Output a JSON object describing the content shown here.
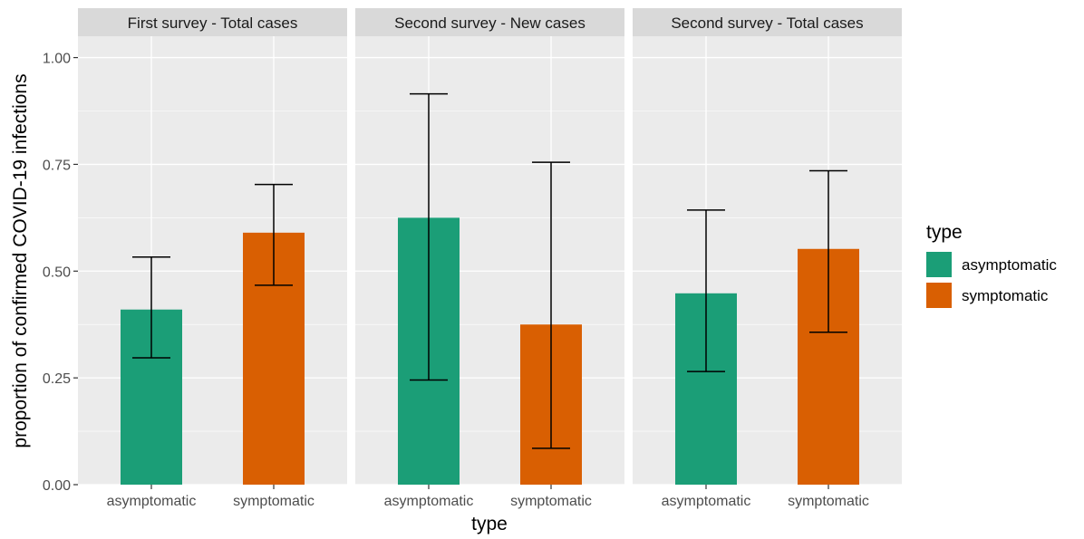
{
  "chart_data": {
    "type": "bar",
    "xlabel": "type",
    "ylabel": "proportion of confirmed COVID-19 infections",
    "ylim": [
      0,
      1.05
    ],
    "y_ticks": [
      "0.00",
      "0.25",
      "0.50",
      "0.75",
      "1.00"
    ],
    "y_tick_values": [
      0,
      0.25,
      0.5,
      0.75,
      1.0
    ],
    "grid": true,
    "legend": {
      "title": "type",
      "position": "right",
      "entries": [
        "asymptomatic",
        "symptomatic"
      ]
    },
    "colors": {
      "asymptomatic": "#1b9e77",
      "symptomatic": "#d95f02",
      "panel_background": "#ebebeb",
      "strip_background": "#d9d9d9",
      "gridline": "#ffffff"
    },
    "categories": [
      "asymptomatic",
      "symptomatic"
    ],
    "facets": [
      {
        "title": "First survey - Total cases",
        "bars": [
          {
            "category": "asymptomatic",
            "value": 0.41,
            "lower": 0.297,
            "upper": 0.533
          },
          {
            "category": "symptomatic",
            "value": 0.59,
            "lower": 0.467,
            "upper": 0.703
          }
        ]
      },
      {
        "title": "Second survey - New cases",
        "bars": [
          {
            "category": "asymptomatic",
            "value": 0.625,
            "lower": 0.245,
            "upper": 0.915
          },
          {
            "category": "symptomatic",
            "value": 0.375,
            "lower": 0.085,
            "upper": 0.755
          }
        ]
      },
      {
        "title": "Second survey - Total cases",
        "bars": [
          {
            "category": "asymptomatic",
            "value": 0.448,
            "lower": 0.265,
            "upper": 0.643
          },
          {
            "category": "symptomatic",
            "value": 0.552,
            "lower": 0.357,
            "upper": 0.735
          }
        ]
      }
    ]
  }
}
